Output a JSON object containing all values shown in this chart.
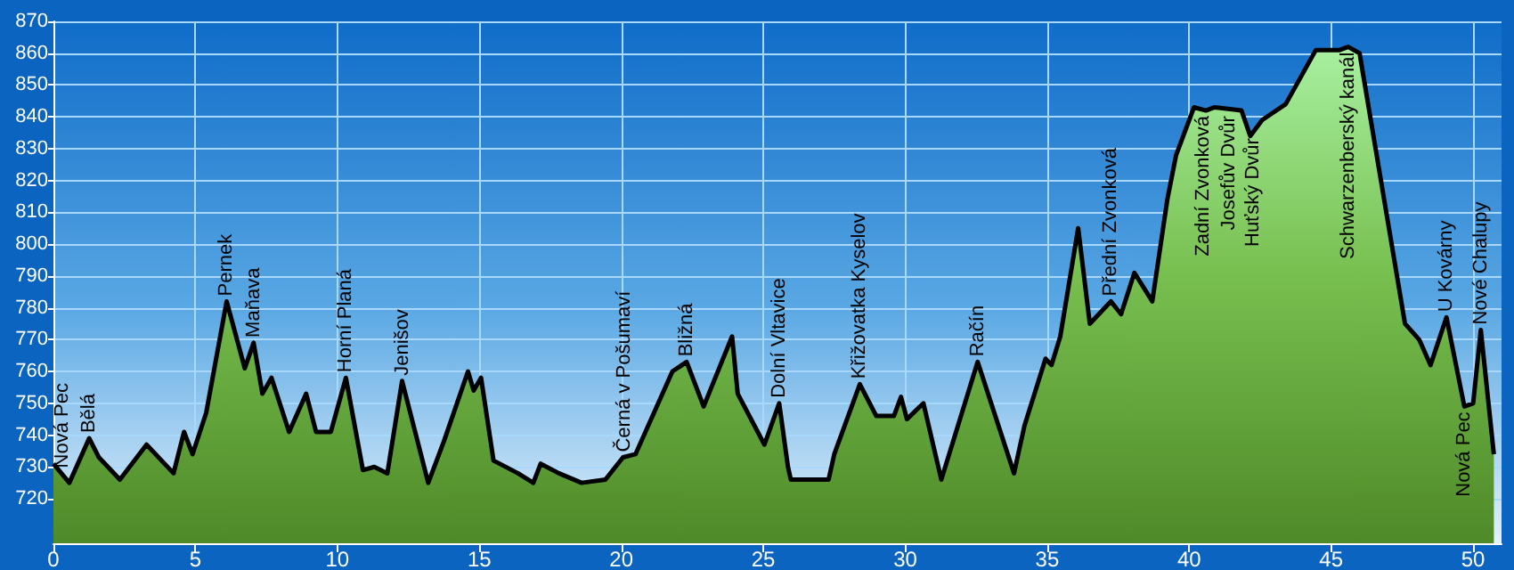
{
  "chart_data": {
    "type": "area",
    "x": [
      0,
      0.56,
      1.26,
      1.6,
      2.34,
      3.28,
      4.23,
      4.6,
      4.9,
      5.38,
      6.1,
      6.74,
      7.05,
      7.36,
      7.68,
      8.3,
      8.9,
      9.25,
      9.77,
      10.3,
      10.9,
      11.3,
      11.76,
      12.28,
      13.2,
      13.75,
      14.6,
      14.8,
      15.06,
      15.5,
      16.36,
      16.9,
      17.16,
      17.8,
      18.6,
      19.44,
      20.06,
      20.5,
      21.8,
      22.3,
      22.9,
      23.9,
      24.1,
      25.04,
      25.56,
      25.87,
      25.97,
      27.3,
      27.5,
      28.4,
      28.98,
      29.6,
      29.85,
      30.06,
      30.64,
      31.27,
      32.55,
      33.83,
      34.2,
      34.94,
      35.15,
      35.46,
      36.09,
      36.5,
      37.24,
      37.6,
      38.07,
      38.7,
      39.23,
      39.54,
      40.17,
      40.59,
      40.9,
      41.84,
      42.15,
      42.57,
      43.4,
      44.46,
      45.3,
      45.6,
      46.0,
      47.6,
      48.1,
      48.5,
      49.06,
      49.69,
      50.0,
      50.27,
      50.73
    ],
    "series": [
      {
        "color": "#000000",
        "values": [
          731,
          725,
          739,
          733,
          726,
          737,
          728,
          741,
          734,
          747,
          782,
          761,
          769,
          753,
          758,
          741,
          753,
          741,
          741,
          758,
          729,
          730,
          728,
          757,
          725,
          738,
          760,
          754,
          758,
          732,
          728,
          725,
          731,
          728,
          725,
          726,
          733,
          734,
          760,
          763,
          749,
          771,
          753,
          737,
          750,
          730,
          726,
          726,
          734,
          756,
          746,
          746,
          752,
          745,
          750,
          726,
          763,
          728,
          743,
          764,
          762,
          771,
          805,
          775,
          782,
          778,
          791,
          782,
          814,
          828,
          843,
          842,
          843,
          842,
          834,
          839,
          844,
          861,
          861,
          862,
          860,
          775,
          770,
          762,
          777,
          749,
          750,
          773,
          734
        ]
      }
    ],
    "xlim": [
      0,
      51
    ],
    "xticks": [
      0,
      5,
      10,
      15,
      20,
      25,
      30,
      35,
      40,
      45,
      50
    ],
    "ylim": [
      706,
      870
    ],
    "yticks": [
      720,
      730,
      740,
      750,
      760,
      770,
      780,
      790,
      800,
      810,
      820,
      830,
      840,
      850,
      860,
      870
    ],
    "grid": true,
    "annotations": [
      {
        "text": "Nová Pec",
        "x": 0.3,
        "y": 728
      },
      {
        "text": "Bělá",
        "x": 1.26,
        "y": 739
      },
      {
        "text": "Pernek",
        "x": 6.1,
        "y": 782
      },
      {
        "text": "Maňava",
        "x": 7.05,
        "y": 769
      },
      {
        "text": "Horní Planá",
        "x": 10.3,
        "y": 758
      },
      {
        "text": "Jenišov",
        "x": 12.28,
        "y": 757
      },
      {
        "text": "Černá v Pošumaví",
        "x": 20.1,
        "y": 733
      },
      {
        "text": "Bližná",
        "x": 22.3,
        "y": 763
      },
      {
        "text": "Dolní Vltavice",
        "x": 25.56,
        "y": 750
      },
      {
        "text": "Křižovatka Kyselov",
        "x": 28.4,
        "y": 756
      },
      {
        "text": "Račín",
        "x": 32.55,
        "y": 763
      },
      {
        "text": "Přední Zvonková",
        "x": 37.24,
        "y": 782
      },
      {
        "text": "Zadní Zvonková",
        "x": 40.5,
        "y": 842
      },
      {
        "text": "Josefův Dvůr",
        "x": 41.4,
        "y": 842
      },
      {
        "text": "Huťský Dvůr",
        "x": 42.25,
        "y": 835
      },
      {
        "text": "Schwarzenberský kanál",
        "x": 45.6,
        "y": 862
      },
      {
        "text": "U Kovárny",
        "x": 49.06,
        "y": 777
      },
      {
        "text": "Nová Pec",
        "x": 49.69,
        "y": 749
      },
      {
        "text": "Nové Chalupy",
        "x": 50.27,
        "y": 773
      }
    ]
  }
}
